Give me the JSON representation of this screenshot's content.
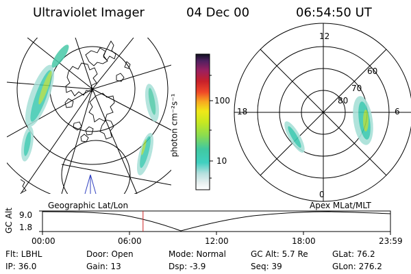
{
  "header": {
    "instrument": "Ultraviolet Imager",
    "date": "04 Dec 00",
    "time": "06:54:50 UT"
  },
  "colorbar": {
    "label": "photon cm⁻²s⁻¹",
    "ticks": [
      "100",
      "10"
    ]
  },
  "polar_plot": {
    "mlt_labels": [
      "12",
      "18",
      "6",
      "0"
    ],
    "lat_labels": [
      "60",
      "70",
      "80"
    ]
  },
  "altitude_plot": {
    "ylabel": "GC Alt",
    "yticks": [
      "9.0",
      "1.8"
    ],
    "left_caption": "Geographic Lat/Lon",
    "right_caption": "Apex  MLat/MLT",
    "xticks": [
      "00:00",
      "06:00",
      "12:00",
      "18:00",
      "23:59"
    ],
    "current_time_fraction": 0.289,
    "marker_color": "#cc2222"
  },
  "info": {
    "flt": "Flt: LBHL",
    "ip": "IP: 36.0",
    "door": "Door: Open",
    "gain": "Gain: 13",
    "mode": "Mode: Normal",
    "dsp": "Dsp:    -3.9",
    "gcalt": "GC Alt: 5.7 Re",
    "seq": "Seq: 39",
    "glat": "GLat:  76.2",
    "glon": "GLon: 276.2"
  }
}
